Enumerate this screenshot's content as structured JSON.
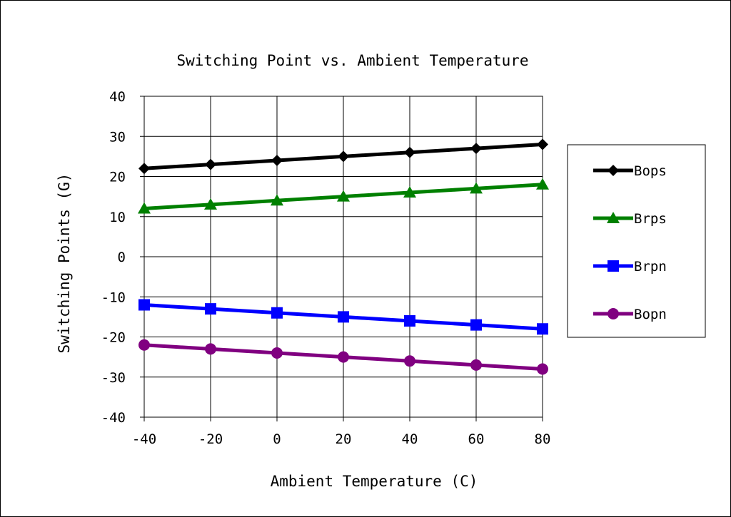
{
  "chart_data": {
    "type": "line",
    "title": "Switching Point vs. Ambient Temperature",
    "xlabel": "Ambient Temperature (C)",
    "ylabel": "Switching Points (G)",
    "x": [
      -40,
      -20,
      0,
      20,
      40,
      60,
      80
    ],
    "xlim": [
      -40,
      80
    ],
    "ylim": [
      -40,
      40
    ],
    "x_ticks": [
      -40,
      -20,
      0,
      20,
      40,
      60,
      80
    ],
    "y_ticks": [
      -40,
      -30,
      -20,
      -10,
      0,
      10,
      20,
      30,
      40
    ],
    "x_tick_labels": [
      "-40",
      "-20",
      "0",
      "20",
      "40",
      "60",
      "80"
    ],
    "y_tick_labels": [
      "-40",
      "-30",
      "-20",
      "-10",
      "0",
      "10",
      "20",
      "30",
      "40"
    ],
    "grid": true,
    "legend_position": "right",
    "series": [
      {
        "name": "Bops",
        "marker": "diamond",
        "color": "#000000",
        "values": [
          22,
          23,
          24,
          25,
          26,
          27,
          28
        ]
      },
      {
        "name": "Brps",
        "marker": "triangle",
        "color": "#008000",
        "values": [
          12,
          13,
          14,
          15,
          16,
          17,
          18
        ]
      },
      {
        "name": "Brpn",
        "marker": "square",
        "color": "#0000ff",
        "values": [
          -12,
          -13,
          -14,
          -15,
          -16,
          -17,
          -18
        ]
      },
      {
        "name": "Bopn",
        "marker": "circle",
        "color": "#800080",
        "values": [
          -22,
          -23,
          -24,
          -25,
          -26,
          -27,
          -28
        ]
      }
    ]
  }
}
